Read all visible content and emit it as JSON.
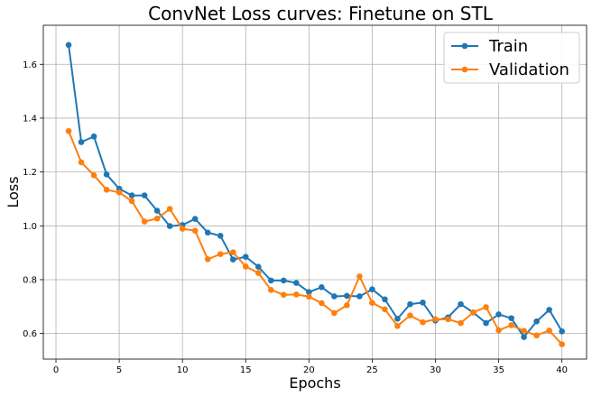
{
  "chart_data": {
    "type": "line",
    "title": "ConvNet Loss curves: Finetune on STL",
    "xlabel": "Epochs",
    "ylabel": "Loss",
    "xlim": [
      -1,
      41.95
    ],
    "ylim": [
      0.505,
      1.745
    ],
    "xticks": [
      0,
      5,
      10,
      15,
      20,
      25,
      30,
      35,
      40
    ],
    "yticks": [
      0.6,
      0.8,
      1.0,
      1.2,
      1.4,
      1.6
    ],
    "ytick_labels": [
      "0.6",
      "0.8",
      "1.0",
      "1.2",
      "1.4",
      "1.6"
    ],
    "grid": true,
    "legend_position": "top-right",
    "x": [
      1,
      2,
      3,
      4,
      5,
      6,
      7,
      8,
      9,
      10,
      11,
      12,
      13,
      14,
      15,
      16,
      17,
      18,
      19,
      20,
      21,
      22,
      23,
      24,
      25,
      26,
      27,
      28,
      29,
      30,
      31,
      32,
      33,
      34,
      35,
      36,
      37,
      38,
      39,
      40
    ],
    "series": [
      {
        "name": "Train",
        "color": "#1f77b4",
        "values": [
          1.672,
          1.311,
          1.332,
          1.191,
          1.138,
          1.113,
          1.113,
          1.056,
          0.999,
          1.003,
          1.026,
          0.975,
          0.963,
          0.875,
          0.885,
          0.848,
          0.797,
          0.797,
          0.788,
          0.754,
          0.772,
          0.738,
          0.74,
          0.738,
          0.764,
          0.727,
          0.655,
          0.709,
          0.715,
          0.648,
          0.66,
          0.709,
          0.678,
          0.639,
          0.671,
          0.657,
          0.587,
          0.645,
          0.688,
          0.608
        ]
      },
      {
        "name": "Validation",
        "color": "#ff7f0e",
        "values": [
          1.352,
          1.236,
          1.188,
          1.134,
          1.124,
          1.092,
          1.016,
          1.027,
          1.063,
          0.989,
          0.982,
          0.876,
          0.895,
          0.902,
          0.849,
          0.825,
          0.762,
          0.744,
          0.745,
          0.737,
          0.713,
          0.676,
          0.705,
          0.812,
          0.714,
          0.69,
          0.628,
          0.667,
          0.642,
          0.653,
          0.653,
          0.639,
          0.679,
          0.698,
          0.612,
          0.631,
          0.61,
          0.593,
          0.611,
          0.56
        ]
      }
    ]
  }
}
